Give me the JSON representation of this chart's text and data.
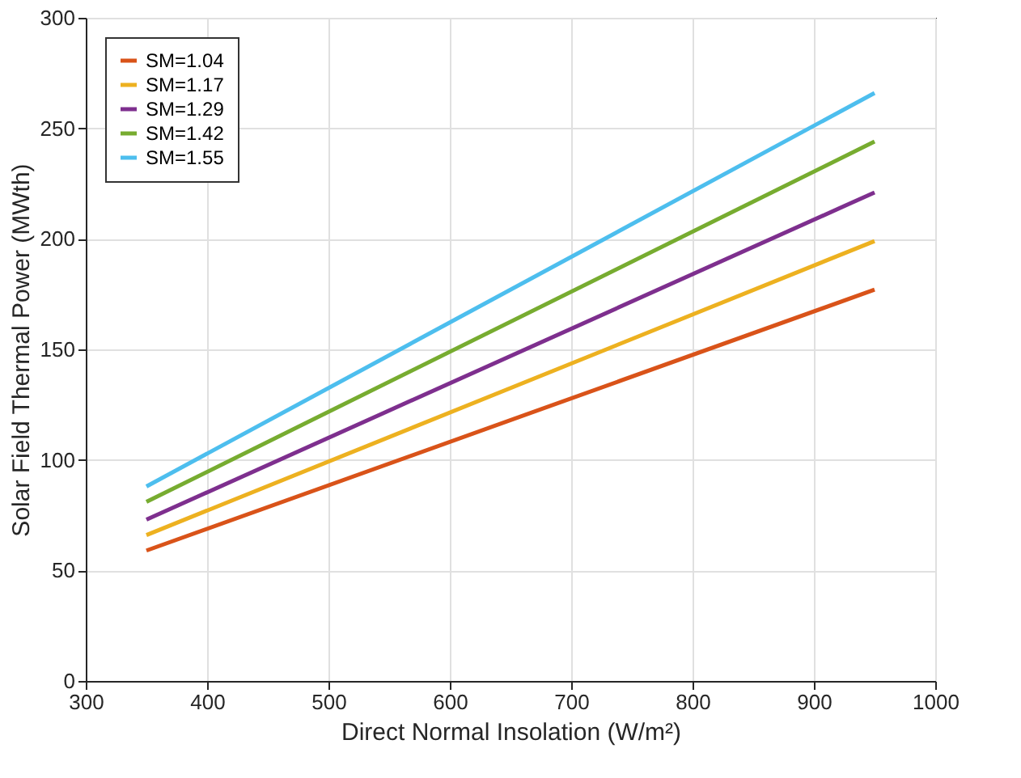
{
  "chart_data": {
    "type": "line",
    "xlabel": "Direct Normal Insolation (W/m²)",
    "ylabel": "Solar Field Thermal Power (MWth)",
    "x": [
      350,
      950
    ],
    "series": [
      {
        "name": "SM=1.04",
        "color": "#d95319",
        "values": [
          59,
          177
        ]
      },
      {
        "name": "SM=1.17",
        "color": "#edb120",
        "values": [
          66,
          199
        ]
      },
      {
        "name": "SM=1.29",
        "color": "#7e2f8e",
        "values": [
          73,
          221
        ]
      },
      {
        "name": "SM=1.42",
        "color": "#77ac30",
        "values": [
          81,
          244
        ]
      },
      {
        "name": "SM=1.55",
        "color": "#4dbeee",
        "values": [
          88,
          266
        ]
      }
    ],
    "xlim": [
      300,
      1000
    ],
    "xticks": [
      300,
      400,
      500,
      600,
      700,
      800,
      900,
      1000
    ],
    "ylim": [
      0,
      300
    ],
    "yticks": [
      0,
      50,
      100,
      150,
      200,
      250,
      300
    ],
    "grid": true,
    "legend": "top left",
    "marker": "none",
    "line_style": "solid"
  }
}
